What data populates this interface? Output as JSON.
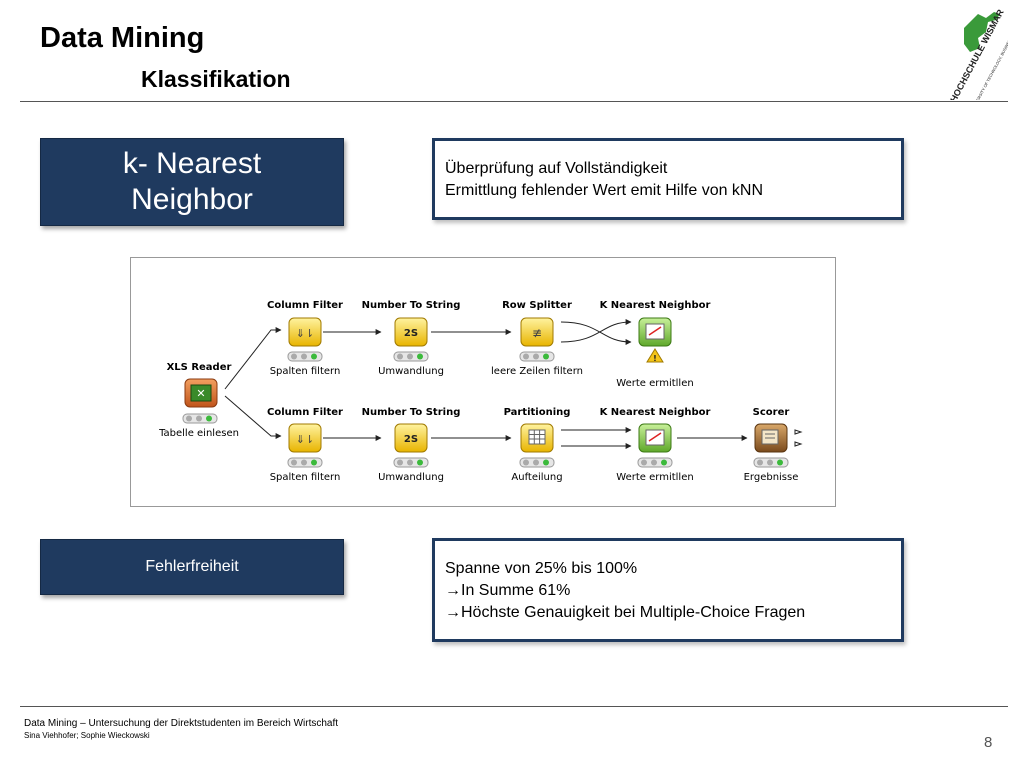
{
  "header": {
    "title": "Data Mining",
    "subtitle": "Klassifikation",
    "logo_text": "HOCHSCHULE WISMAR",
    "logo_small": "UNIVERSITY OF TECHNOLOGY, BUSINESS AND DESIGN"
  },
  "section1": {
    "label_line1": "k- Nearest",
    "label_line2": "Neighbor",
    "info_lines": [
      "Überprüfung auf Vollständigkeit",
      "Ermittlung fehlender Wert emit Hilfe von kNN"
    ]
  },
  "workflow": {
    "reader": {
      "title": "XLS Reader",
      "label": "Tabelle einlesen"
    },
    "row1": [
      {
        "title": "Column Filter",
        "label": "Spalten filtern",
        "icon": "column-filter-icon"
      },
      {
        "title": "Number To String",
        "label": "Umwandlung",
        "icon": "number-to-string-icon"
      },
      {
        "title": "Row Splitter",
        "label": "leere Zeilen filtern",
        "icon": "row-splitter-icon"
      },
      {
        "title": "K Nearest Neighbor",
        "label": "Werte ermitllen",
        "icon": "knn-icon"
      }
    ],
    "row2": [
      {
        "title": "Column Filter",
        "label": "Spalten filtern",
        "icon": "column-filter-icon"
      },
      {
        "title": "Number To String",
        "label": "Umwandlung",
        "icon": "number-to-string-icon"
      },
      {
        "title": "Partitioning",
        "label": "Aufteilung",
        "icon": "partitioning-icon"
      },
      {
        "title": "K Nearest Neighbor",
        "label": "Werte ermitllen",
        "icon": "knn-icon"
      },
      {
        "title": "Scorer",
        "label": "Ergebnisse",
        "icon": "scorer-icon"
      }
    ],
    "nts_glyph": "2S",
    "colors": {
      "yellow_node": "#f5c518",
      "green_node": "#7ac143",
      "orange_node": "#d9661f",
      "brown_node": "#8b5a2b"
    }
  },
  "section2": {
    "label": "Fehlerfreiheit",
    "info_lines": [
      "Spanne von 25% bis 100%",
      "In Summe 61%",
      "Höchste Genauigkeit bei Multiple-Choice Fragen"
    ],
    "arrow_glyph": "→"
  },
  "footer": {
    "line1": "Data Mining – Untersuchung der Direktstudenten im Bereich Wirtschaft",
    "line2": "Sina Viehhofer; Sophie Wieckowski",
    "page_number": "8"
  },
  "colors": {
    "navy": "#1f3a5f",
    "logo_green": "#3a9a3a"
  }
}
